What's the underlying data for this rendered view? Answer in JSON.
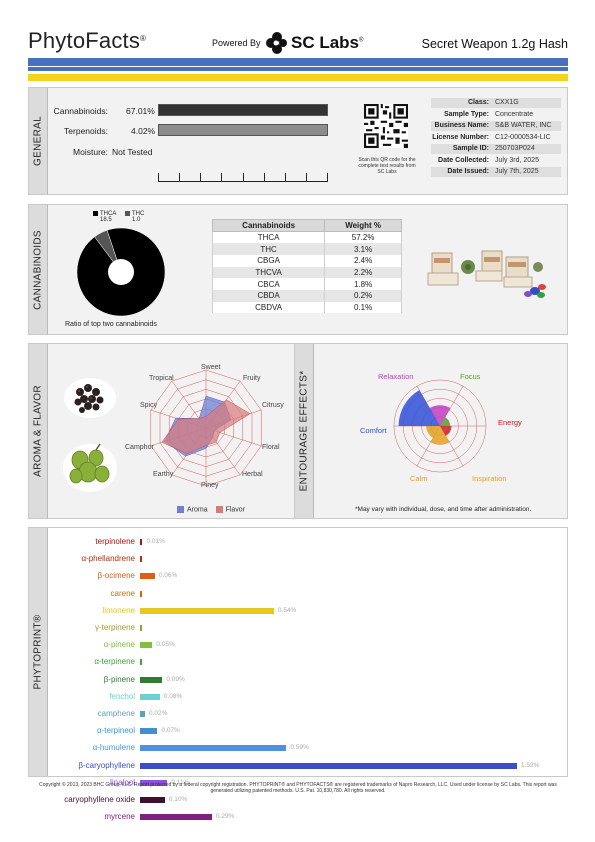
{
  "header": {
    "brand": "PhytoFacts",
    "brand_mark": "®",
    "powered_by": "Powered By",
    "lab_name": "SC Labs",
    "lab_mark": "®",
    "product_name": "Secret Weapon 1.2g Hash"
  },
  "colors": {
    "stripe_blue": "#4a6fbf",
    "stripe_yellow": "#f5d21c",
    "bar_dark": "#333333",
    "bar_gray": "#8c8c8c"
  },
  "general": {
    "label": "GENERAL",
    "cannabinoids_label": "Cannabinoids:",
    "cannabinoids_value": "67.01%",
    "cannabinoids_fraction": 0.6701,
    "terpenoids_label": "Terpenoids:",
    "terpenoids_value": "4.02%",
    "moisture_label": "Moisture:",
    "moisture_value": "Not Tested",
    "qr_caption": "Scan this QR code for the complete test results from SC Labs",
    "info": [
      {
        "key": "Class:",
        "value": "CXX1G"
      },
      {
        "key": "Sample Type:",
        "value": "Concentrate"
      },
      {
        "key": "Business Name:",
        "value": "S&B WATER, INC"
      },
      {
        "key": "License Number:",
        "value": "C12-0000534-LIC"
      },
      {
        "key": "Sample ID:",
        "value": "250703P024"
      },
      {
        "key": "Date Collected:",
        "value": "July 3rd, 2025"
      },
      {
        "key": "Date Issued:",
        "value": "July 7th, 2025"
      }
    ]
  },
  "cannabinoids": {
    "label": "CANNABINOIDS",
    "pie_caption": "Ratio of top two cannabinoids",
    "pie": [
      {
        "name": "THCA",
        "value": "18.5",
        "color": "#000000"
      },
      {
        "name": "THC",
        "value": "1.0",
        "color": "#555555"
      }
    ],
    "table_headers": [
      "Cannabinoids",
      "Weight %"
    ],
    "rows": [
      {
        "name": "THCA",
        "value": "57.2%"
      },
      {
        "name": "THC",
        "value": "3.1%"
      },
      {
        "name": "CBGA",
        "value": "2.4%"
      },
      {
        "name": "THCVA",
        "value": "2.2%"
      },
      {
        "name": "CBCA",
        "value": "1.8%"
      },
      {
        "name": "CBDA",
        "value": "0.2%"
      },
      {
        "name": "CBDVA",
        "value": "0.1%"
      }
    ]
  },
  "aroma": {
    "label": "AROMA & FLAVOR",
    "axes": [
      "Sweet",
      "Fruity",
      "Citrusy",
      "Floral",
      "Herbal",
      "Piney",
      "Earthy",
      "Camphor",
      "Spicy",
      "Tropical"
    ],
    "legend_aroma": "Aroma",
    "legend_flavor": "Flavor",
    "aroma_color": "#6f7fd6",
    "flavor_color": "#d97a7a"
  },
  "entourage": {
    "label": "ENTOURAGE EFFECTS*",
    "effects": [
      {
        "name": "Relaxation",
        "color": "#c040c0"
      },
      {
        "name": "Focus",
        "color": "#55a030"
      },
      {
        "name": "Energy",
        "color": "#d02020"
      },
      {
        "name": "Inspiration",
        "color": "#e8a020"
      },
      {
        "name": "Calm",
        "color": "#e0a020"
      },
      {
        "name": "Comfort",
        "color": "#3050d8"
      }
    ],
    "note": "*May vary with individual, dose, and time after administration."
  },
  "phytoprint": {
    "label": "PHYTOPRINT®",
    "terpenes": [
      {
        "name": "terpinolene",
        "pct": "0.01%",
        "value": 0.01,
        "color": "#b01010"
      },
      {
        "name": "α-phellandrene",
        "pct": "",
        "value": 0.0,
        "color": "#b03010"
      },
      {
        "name": "β-ocimene",
        "pct": "0.06%",
        "value": 0.06,
        "color": "#e06010"
      },
      {
        "name": "carene",
        "pct": "",
        "value": 0.0,
        "color": "#c07010"
      },
      {
        "name": "limonene",
        "pct": "0.54%",
        "value": 0.54,
        "color": "#e8c820"
      },
      {
        "name": "γ-terpinene",
        "pct": "",
        "value": 0.0,
        "color": "#a0a020"
      },
      {
        "name": "α-pinene",
        "pct": "0.05%",
        "value": 0.05,
        "color": "#80c040"
      },
      {
        "name": "α-terpinene",
        "pct": "",
        "value": 0.0,
        "color": "#40a040"
      },
      {
        "name": "β-pinene",
        "pct": "0.09%",
        "value": 0.09,
        "color": "#2e7d32"
      },
      {
        "name": "fenchol",
        "pct": "0.08%",
        "value": 0.08,
        "color": "#70d0d0"
      },
      {
        "name": "camphene",
        "pct": "0.02%",
        "value": 0.02,
        "color": "#60a0c0"
      },
      {
        "name": "α-terpineol",
        "pct": "0.07%",
        "value": 0.07,
        "color": "#4090d0"
      },
      {
        "name": "α-humulene",
        "pct": "0.59%",
        "value": 0.59,
        "color": "#5090e0"
      },
      {
        "name": "β-caryophyllene",
        "pct": "1.52%",
        "value": 1.52,
        "color": "#3a50c8"
      },
      {
        "name": "linalool",
        "pct": "0.11%",
        "value": 0.11,
        "color": "#8a50e0"
      },
      {
        "name": "caryophyllene oxide",
        "pct": "0.10%",
        "value": 0.1,
        "color": "#401030"
      },
      {
        "name": "myrcene",
        "pct": "0.29%",
        "value": 0.29,
        "color": "#802080"
      }
    ]
  },
  "footer": {
    "text": "Copyright © 2013, 2023 BHC Group, LLC. Report protected by a federal copyright registration. PHYTOPRINT® and PHYTOFACTS® are registered trademarks of Napro Research, LLC. Used under license by SC Labs. This report was generated utilizing patented methods. U.S. Pat. 10,830,780. All rights reserved."
  }
}
